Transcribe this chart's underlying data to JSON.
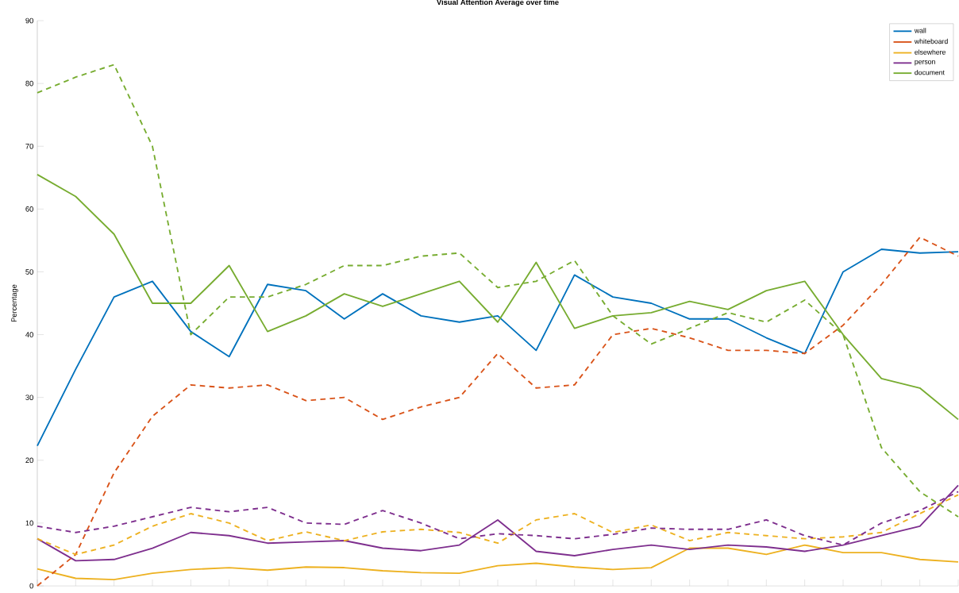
{
  "chart_data": {
    "type": "line",
    "title": "Visual Attention Average over time",
    "ylabel": "Percentage",
    "categories": [
      null,
      null,
      null,
      null,
      null,
      null,
      null,
      null,
      null,
      null,
      null,
      null,
      null,
      null,
      null,
      null,
      null,
      null,
      null,
      null,
      null,
      null,
      null,
      null,
      null
    ],
    "ylim": [
      0,
      90
    ],
    "yticks": [
      0,
      10,
      20,
      30,
      40,
      50,
      60,
      70,
      80,
      90
    ],
    "tick_labels": "y",
    "legend": "top right",
    "series": [
      {
        "name": "wall",
        "color": "#0072bd",
        "line_style": "solid",
        "values": [
          22.3,
          34.5,
          46,
          48.5,
          40.5,
          36.5,
          48,
          47,
          42.5,
          46.5,
          43,
          42,
          43,
          37.5,
          49.5,
          46,
          45,
          42.5,
          42.5,
          39.5,
          37,
          50,
          53.6,
          53,
          53.2
        ]
      },
      {
        "name": "whiteboard",
        "color": "#d95319",
        "line_style": "solid",
        "values": [
          null,
          null,
          null,
          null,
          null,
          null,
          null,
          null,
          null,
          null,
          null,
          null,
          null,
          null,
          null,
          null,
          null,
          null,
          null,
          null,
          null,
          null,
          null,
          null,
          null
        ]
      },
      {
        "name": "elsewhere",
        "color": "#edb120",
        "line_style": "solid",
        "values": [
          2.7,
          1.2,
          1.0,
          2.0,
          2.6,
          2.9,
          2.5,
          3.0,
          2.9,
          2.4,
          2.1,
          2.0,
          3.2,
          3.6,
          3.0,
          2.6,
          2.9,
          6.0,
          6.0,
          5.0,
          6.5,
          5.3,
          5.3,
          4.2,
          3.8
        ]
      },
      {
        "name": "person",
        "color": "#7e2f8e",
        "line_style": "solid",
        "values": [
          7.5,
          4.0,
          4.2,
          6.0,
          8.5,
          8.0,
          6.8,
          7.0,
          7.2,
          6.0,
          5.6,
          6.5,
          10.5,
          5.5,
          4.8,
          5.8,
          6.5,
          5.8,
          6.5,
          6.2,
          5.5,
          6.5,
          8.0,
          9.5,
          16
        ]
      },
      {
        "name": "document",
        "color": "#77ac30",
        "line_style": "solid",
        "values": [
          65.5,
          62,
          56,
          45,
          45,
          51,
          40.5,
          43,
          46.5,
          44.5,
          46.5,
          48.5,
          42,
          51.5,
          41,
          43,
          43.5,
          45.3,
          44,
          47,
          48.5,
          40,
          33,
          31.5,
          26.5
        ]
      },
      {
        "color": "#d95319",
        "line_style": "dashed",
        "values": [
          0,
          5,
          18,
          27,
          32,
          31.5,
          32,
          29.5,
          30,
          26.5,
          28.5,
          30,
          37,
          31.5,
          32,
          40,
          41,
          39.5,
          37.5,
          37.5,
          37,
          41.5,
          48,
          55.5,
          52.5
        ]
      },
      {
        "color": "#edb120",
        "line_style": "dashed",
        "values": [
          7.5,
          5.0,
          6.5,
          9.5,
          11.5,
          10.0,
          7.2,
          8.6,
          7.2,
          8.6,
          9.0,
          8.5,
          6.8,
          10.5,
          11.5,
          8.5,
          9.7,
          7.2,
          8.5,
          8.0,
          7.5,
          7.8,
          8.5,
          11.5,
          14.5
        ]
      },
      {
        "color": "#7e2f8e",
        "line_style": "dashed",
        "values": [
          9.5,
          8.5,
          9.5,
          11,
          12.5,
          11.8,
          12.5,
          10.0,
          9.8,
          12.0,
          10,
          7.5,
          8.3,
          8.0,
          7.5,
          8.2,
          9.2,
          9.0,
          9.0,
          10.5,
          8,
          6.5,
          10,
          12,
          15
        ]
      },
      {
        "color": "#77ac30",
        "line_style": "dashed",
        "values": [
          78.5,
          81,
          83,
          70,
          40,
          46,
          46,
          48,
          51,
          51,
          52.5,
          53,
          47.5,
          48.5,
          51.8,
          43,
          38.5,
          41,
          43.5,
          42,
          45.5,
          40,
          22,
          15,
          11
        ]
      }
    ]
  }
}
